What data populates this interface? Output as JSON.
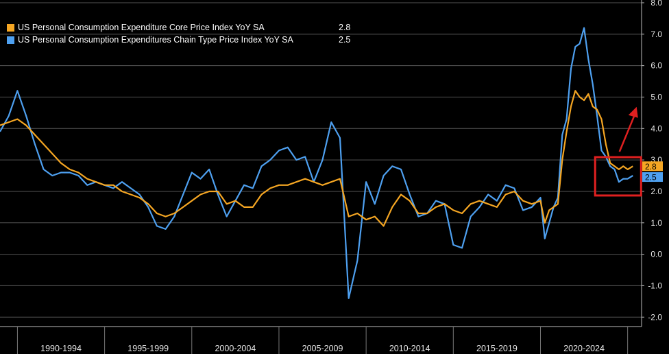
{
  "chart_data": {
    "type": "line",
    "x_axis_labels": [
      "1990-1994",
      "1995-1999",
      "2000-2004",
      "2005-2009",
      "2010-2014",
      "2015-2019",
      "2020-2024"
    ],
    "y_ticks": [
      "-2.0",
      "-1.0",
      "0.0",
      "1.0",
      "2.0",
      "3.0",
      "4.0",
      "5.0",
      "6.0",
      "7.0",
      "8.0"
    ],
    "ylim": [
      -2.3,
      8.0
    ],
    "xlim": [
      1989.0,
      2025.8
    ],
    "grid": "horizontal",
    "legend_position": "top-left",
    "series": [
      {
        "name": "US Personal Consumption Expenditure Core Price Index YoY SA",
        "last_value_label": "2.8",
        "color": "#f5a623",
        "x": [
          1989.0,
          1989.5,
          1990.0,
          1990.5,
          1991.0,
          1991.5,
          1992.0,
          1992.5,
          1993.0,
          1993.5,
          1994.0,
          1994.5,
          1995.0,
          1995.5,
          1996.0,
          1996.5,
          1997.0,
          1997.5,
          1998.0,
          1998.5,
          1999.0,
          1999.5,
          2000.0,
          2000.5,
          2001.0,
          2001.5,
          2002.0,
          2002.5,
          2003.0,
          2003.5,
          2004.0,
          2004.5,
          2005.0,
          2005.5,
          2006.0,
          2006.5,
          2007.0,
          2007.5,
          2008.0,
          2008.5,
          2009.0,
          2009.5,
          2010.0,
          2010.5,
          2011.0,
          2011.5,
          2012.0,
          2012.5,
          2013.0,
          2013.5,
          2014.0,
          2014.5,
          2015.0,
          2015.5,
          2016.0,
          2016.5,
          2017.0,
          2017.5,
          2018.0,
          2018.5,
          2019.0,
          2019.5,
          2020.0,
          2020.25,
          2020.5,
          2020.75,
          2021.0,
          2021.25,
          2021.5,
          2021.75,
          2022.0,
          2022.25,
          2022.5,
          2022.75,
          2023.0,
          2023.25,
          2023.5,
          2023.75,
          2024.0,
          2024.25,
          2024.5,
          2024.75,
          2025.0,
          2025.3
        ],
        "values": [
          4.1,
          4.2,
          4.3,
          4.1,
          3.8,
          3.5,
          3.2,
          2.9,
          2.7,
          2.6,
          2.4,
          2.3,
          2.2,
          2.2,
          2.0,
          1.9,
          1.8,
          1.6,
          1.3,
          1.2,
          1.3,
          1.5,
          1.7,
          1.9,
          2.0,
          2.0,
          1.6,
          1.7,
          1.5,
          1.5,
          1.9,
          2.1,
          2.2,
          2.2,
          2.3,
          2.4,
          2.3,
          2.2,
          2.3,
          2.4,
          1.2,
          1.3,
          1.1,
          1.2,
          0.9,
          1.5,
          1.9,
          1.7,
          1.3,
          1.3,
          1.5,
          1.6,
          1.4,
          1.3,
          1.6,
          1.7,
          1.6,
          1.5,
          1.9,
          2.0,
          1.7,
          1.6,
          1.7,
          1.0,
          1.4,
          1.5,
          1.6,
          3.0,
          3.9,
          4.7,
          5.2,
          5.0,
          4.9,
          5.1,
          4.7,
          4.6,
          4.3,
          3.5,
          2.9,
          2.8,
          2.7,
          2.8,
          2.7,
          2.8
        ]
      },
      {
        "name": "US Personal Consumption Expenditures Chain Type Price Index YoY SA",
        "last_value_label": "2.5",
        "color": "#4ea0f0",
        "x": [
          1989.0,
          1989.5,
          1990.0,
          1990.5,
          1991.0,
          1991.5,
          1992.0,
          1992.5,
          1993.0,
          1993.5,
          1994.0,
          1994.5,
          1995.0,
          1995.5,
          1996.0,
          1996.5,
          1997.0,
          1997.5,
          1998.0,
          1998.5,
          1999.0,
          1999.5,
          2000.0,
          2000.5,
          2001.0,
          2001.5,
          2002.0,
          2002.5,
          2003.0,
          2003.5,
          2004.0,
          2004.5,
          2005.0,
          2005.5,
          2006.0,
          2006.5,
          2007.0,
          2007.5,
          2008.0,
          2008.5,
          2009.0,
          2009.5,
          2010.0,
          2010.5,
          2011.0,
          2011.5,
          2012.0,
          2012.5,
          2013.0,
          2013.5,
          2014.0,
          2014.5,
          2015.0,
          2015.5,
          2016.0,
          2016.5,
          2017.0,
          2017.5,
          2018.0,
          2018.5,
          2019.0,
          2019.5,
          2020.0,
          2020.25,
          2020.5,
          2020.75,
          2021.0,
          2021.25,
          2021.5,
          2021.75,
          2022.0,
          2022.25,
          2022.5,
          2022.75,
          2023.0,
          2023.25,
          2023.5,
          2023.75,
          2024.0,
          2024.25,
          2024.5,
          2024.75,
          2025.0,
          2025.3
        ],
        "values": [
          3.9,
          4.4,
          5.2,
          4.4,
          3.5,
          2.7,
          2.5,
          2.6,
          2.6,
          2.5,
          2.2,
          2.3,
          2.2,
          2.1,
          2.3,
          2.1,
          1.9,
          1.5,
          0.9,
          0.8,
          1.2,
          1.9,
          2.6,
          2.4,
          2.7,
          1.9,
          1.2,
          1.7,
          2.2,
          2.1,
          2.8,
          3.0,
          3.3,
          3.4,
          3.0,
          3.1,
          2.3,
          3.0,
          4.2,
          3.7,
          -1.4,
          -0.2,
          2.3,
          1.6,
          2.5,
          2.8,
          2.7,
          1.9,
          1.2,
          1.3,
          1.7,
          1.6,
          0.3,
          0.2,
          1.2,
          1.5,
          1.9,
          1.7,
          2.2,
          2.1,
          1.4,
          1.5,
          1.8,
          0.5,
          1.0,
          1.5,
          1.8,
          3.8,
          4.3,
          5.9,
          6.6,
          6.7,
          7.2,
          6.2,
          5.4,
          4.4,
          3.3,
          3.1,
          2.8,
          2.7,
          2.3,
          2.4,
          2.4,
          2.5
        ]
      }
    ]
  }
}
